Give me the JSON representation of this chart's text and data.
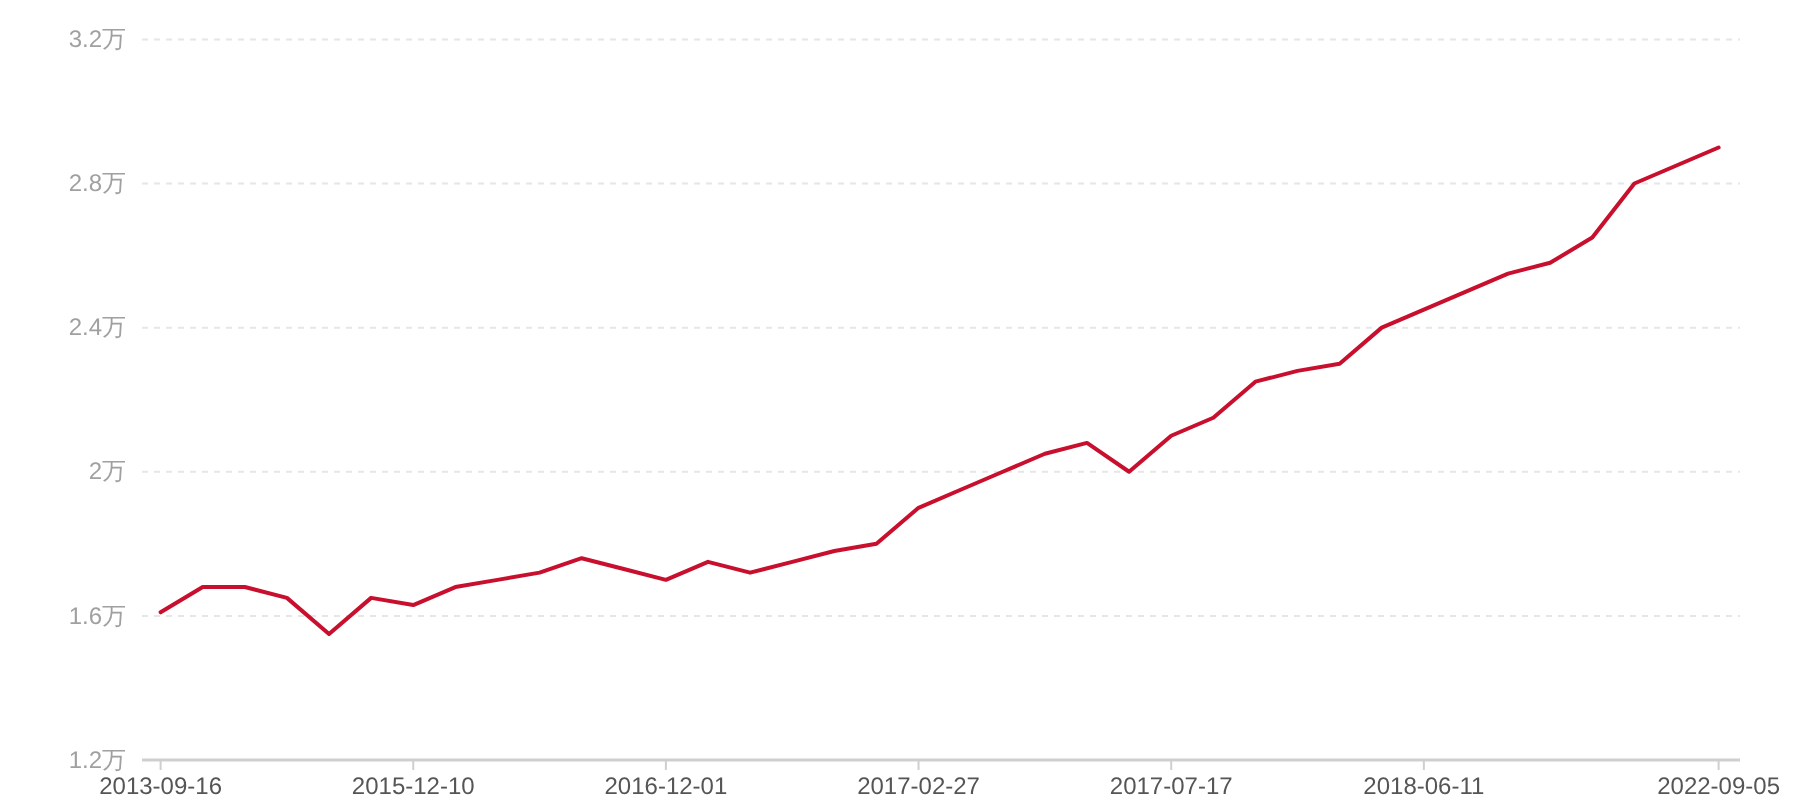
{
  "chart_data": {
    "type": "line",
    "categories": [
      "2013-09-16",
      null,
      null,
      null,
      null,
      null,
      "2015-12-10",
      null,
      null,
      null,
      null,
      null,
      "2016-12-01",
      null,
      null,
      null,
      null,
      null,
      "2017-02-27",
      null,
      null,
      null,
      null,
      null,
      "2017-07-17",
      null,
      null,
      null,
      null,
      null,
      "2018-06-11",
      null,
      null,
      null,
      null,
      null,
      null,
      "2022-09-05"
    ],
    "series": [
      {
        "color": "#c8102e",
        "values": [
          1.61,
          1.68,
          1.68,
          1.65,
          1.55,
          1.65,
          1.63,
          1.68,
          1.7,
          1.72,
          1.76,
          1.73,
          1.7,
          1.75,
          1.72,
          1.75,
          1.78,
          1.8,
          1.9,
          1.95,
          2.0,
          2.05,
          2.08,
          2.0,
          2.1,
          2.15,
          2.25,
          2.28,
          2.3,
          2.4,
          2.45,
          2.5,
          2.55,
          2.58,
          2.65,
          2.8,
          2.85,
          2.9
        ]
      }
    ],
    "ylim": [
      1.2,
      3.2
    ],
    "yticks": [
      {
        "value": 1.2,
        "label": "1.2万"
      },
      {
        "value": 1.6,
        "label": "1.6万"
      },
      {
        "value": 2,
        "label": "2万"
      },
      {
        "value": 2.4,
        "label": "2.4万"
      },
      {
        "value": 2.8,
        "label": "2.8万"
      },
      {
        "value": 3.2,
        "label": "3.2万"
      }
    ],
    "grid": "y",
    "marker": "none",
    "line_style": "solid"
  }
}
